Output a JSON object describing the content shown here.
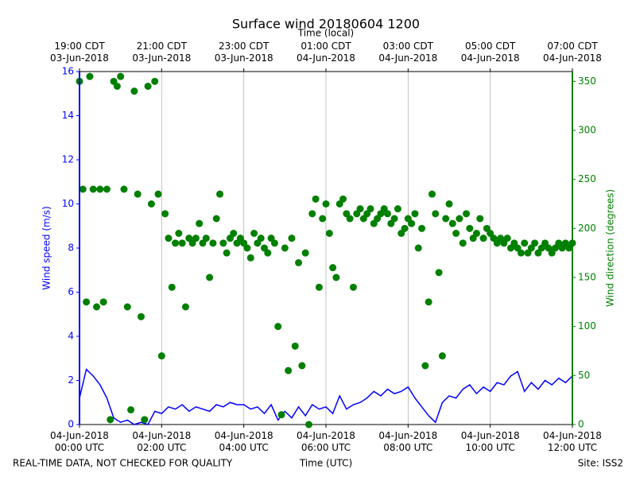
{
  "chart_data": {
    "type": "line",
    "title": "Surface wind 20180604 1200",
    "xlabel": "Time (UTC)",
    "x2label": "Time (local)",
    "ylabel": "Wind speed (m/s)",
    "y2label": "Wind direction (degrees)",
    "footer_left": "REAL-TIME DATA, NOT CHECKED FOR QUALITY",
    "footer_right": "Site: ISS2",
    "xlim": [
      "00:00",
      "12:00"
    ],
    "xticks": [
      {
        "value": "00:00",
        "label": "04-Jun-2018\n00:00 UTC"
      },
      {
        "value": "02:00",
        "label": "04-Jun-2018\n02:00 UTC"
      },
      {
        "value": "04:00",
        "label": "04-Jun-2018\n04:00 UTC"
      },
      {
        "value": "06:00",
        "label": "04-Jun-2018\n06:00 UTC"
      },
      {
        "value": "08:00",
        "label": "04-Jun-2018\n08:00 UTC"
      },
      {
        "value": "10:00",
        "label": "04-Jun-2018\n10:00 UTC"
      },
      {
        "value": "12:00",
        "label": "04-Jun-2018\n12:00 UTC"
      }
    ],
    "x2ticks": [
      {
        "value": "00:00",
        "label": "19:00 CDT\n03-Jun-2018"
      },
      {
        "value": "02:00",
        "label": "21:00 CDT\n03-Jun-2018"
      },
      {
        "value": "04:00",
        "label": "23:00 CDT\n03-Jun-2018"
      },
      {
        "value": "06:00",
        "label": "01:00 CDT\n04-Jun-2018"
      },
      {
        "value": "08:00",
        "label": "03:00 CDT\n04-Jun-2018"
      },
      {
        "value": "10:00",
        "label": "05:00 CDT\n04-Jun-2018"
      },
      {
        "value": "12:00",
        "label": "07:00 CDT\n04-Jun-2018"
      }
    ],
    "ylim": [
      0,
      16
    ],
    "yticks": [
      0,
      2,
      4,
      6,
      8,
      10,
      12,
      14,
      16
    ],
    "y2lim": [
      0,
      360
    ],
    "y2ticks": [
      0,
      50,
      100,
      150,
      200,
      250,
      300,
      350
    ],
    "grid": "x",
    "ycolor": "#0000ff",
    "y2color": "#008000",
    "series": [
      {
        "type": "line",
        "color": "#0000ff",
        "x": [
          "00:00",
          "00:10",
          "00:20",
          "00:30",
          "00:40",
          "00:50",
          "01:00",
          "01:10",
          "01:20",
          "01:30",
          "01:40",
          "01:50",
          "02:00",
          "02:10",
          "02:20",
          "02:30",
          "02:40",
          "02:50",
          "03:00",
          "03:10",
          "03:20",
          "03:30",
          "03:40",
          "03:50",
          "04:00",
          "04:10",
          "04:20",
          "04:30",
          "04:40",
          "04:50",
          "05:00",
          "05:10",
          "05:20",
          "05:30",
          "05:40",
          "05:50",
          "06:00",
          "06:10",
          "06:20",
          "06:30",
          "06:40",
          "06:50",
          "07:00",
          "07:10",
          "07:20",
          "07:30",
          "07:40",
          "07:50",
          "08:00",
          "08:10",
          "08:20",
          "08:30",
          "08:40",
          "08:50",
          "09:00",
          "09:10",
          "09:20",
          "09:30",
          "09:40",
          "09:50",
          "10:00",
          "10:10",
          "10:20",
          "10:30",
          "10:40",
          "10:50",
          "11:00",
          "11:10",
          "11:20",
          "11:30",
          "11:40",
          "11:50",
          "12:00"
        ],
        "values": [
          1.2,
          2.5,
          2.2,
          1.8,
          1.2,
          0.3,
          0.1,
          0.2,
          0.0,
          0.1,
          0.0,
          0.6,
          0.5,
          0.8,
          0.7,
          0.9,
          0.6,
          0.8,
          0.7,
          0.6,
          0.9,
          0.8,
          1.0,
          0.9,
          0.9,
          0.7,
          0.8,
          0.5,
          0.9,
          0.2,
          0.6,
          0.3,
          0.8,
          0.4,
          0.9,
          0.7,
          0.8,
          0.5,
          1.3,
          0.7,
          0.9,
          1.0,
          1.2,
          1.5,
          1.3,
          1.6,
          1.4,
          1.5,
          1.7,
          1.2,
          0.8,
          0.4,
          0.1,
          1.0,
          1.3,
          1.2,
          1.6,
          1.8,
          1.4,
          1.7,
          1.5,
          1.9,
          1.8,
          2.2,
          2.4,
          1.5,
          1.9,
          1.6,
          2.0,
          1.8,
          2.1,
          1.9,
          2.2
        ]
      },
      {
        "type": "scatter",
        "color": "#008000",
        "axis": "y2",
        "x": [
          "00:00",
          "00:05",
          "00:10",
          "00:15",
          "00:20",
          "00:25",
          "00:30",
          "00:35",
          "00:40",
          "00:45",
          "00:50",
          "00:55",
          "01:00",
          "01:05",
          "01:10",
          "01:15",
          "01:20",
          "01:25",
          "01:30",
          "01:35",
          "01:40",
          "01:45",
          "01:50",
          "01:55",
          "02:00",
          "02:05",
          "02:10",
          "02:15",
          "02:20",
          "02:25",
          "02:30",
          "02:35",
          "02:40",
          "02:45",
          "02:50",
          "02:55",
          "03:00",
          "03:05",
          "03:10",
          "03:15",
          "03:20",
          "03:25",
          "03:30",
          "03:35",
          "03:40",
          "03:45",
          "03:50",
          "03:55",
          "04:00",
          "04:05",
          "04:10",
          "04:15",
          "04:20",
          "04:25",
          "04:30",
          "04:35",
          "04:40",
          "04:45",
          "04:50",
          "04:55",
          "05:00",
          "05:05",
          "05:10",
          "05:15",
          "05:20",
          "05:25",
          "05:30",
          "05:35",
          "05:40",
          "05:45",
          "05:50",
          "05:55",
          "06:00",
          "06:05",
          "06:10",
          "06:15",
          "06:20",
          "06:25",
          "06:30",
          "06:35",
          "06:40",
          "06:45",
          "06:50",
          "06:55",
          "07:00",
          "07:05",
          "07:10",
          "07:15",
          "07:20",
          "07:25",
          "07:30",
          "07:35",
          "07:40",
          "07:45",
          "07:50",
          "07:55",
          "08:00",
          "08:05",
          "08:10",
          "08:15",
          "08:20",
          "08:25",
          "08:30",
          "08:35",
          "08:40",
          "08:45",
          "08:50",
          "08:55",
          "09:00",
          "09:05",
          "09:10",
          "09:15",
          "09:20",
          "09:25",
          "09:30",
          "09:35",
          "09:40",
          "09:45",
          "09:50",
          "09:55",
          "10:00",
          "10:05",
          "10:10",
          "10:15",
          "10:20",
          "10:25",
          "10:30",
          "10:35",
          "10:40",
          "10:45",
          "10:50",
          "10:55",
          "11:00",
          "11:05",
          "11:10",
          "11:15",
          "11:20",
          "11:25",
          "11:30",
          "11:35",
          "11:40",
          "11:45",
          "11:50",
          "11:55",
          "12:00"
        ],
        "values": [
          350,
          240,
          125,
          355,
          240,
          120,
          240,
          125,
          240,
          5,
          350,
          345,
          355,
          240,
          120,
          15,
          340,
          235,
          110,
          5,
          345,
          225,
          350,
          235,
          70,
          215,
          190,
          140,
          185,
          195,
          185,
          120,
          190,
          185,
          190,
          205,
          185,
          190,
          150,
          185,
          210,
          235,
          185,
          175,
          190,
          195,
          185,
          190,
          185,
          180,
          170,
          195,
          185,
          190,
          180,
          175,
          190,
          185,
          100,
          10,
          180,
          55,
          190,
          80,
          165,
          60,
          175,
          0,
          215,
          230,
          140,
          210,
          225,
          195,
          160,
          150,
          225,
          230,
          215,
          210,
          140,
          215,
          220,
          210,
          215,
          220,
          205,
          210,
          215,
          220,
          215,
          205,
          210,
          220,
          195,
          200,
          210,
          205,
          215,
          180,
          200,
          60,
          125,
          235,
          215,
          155,
          70,
          210,
          225,
          205,
          195,
          210,
          185,
          215,
          200,
          190,
          195,
          210,
          190,
          200,
          195,
          190,
          185,
          190,
          185,
          190,
          180,
          185,
          180,
          175,
          185,
          175,
          180,
          185,
          175,
          180,
          185,
          180,
          175,
          180,
          185,
          180,
          185,
          180,
          185
        ]
      }
    ]
  }
}
